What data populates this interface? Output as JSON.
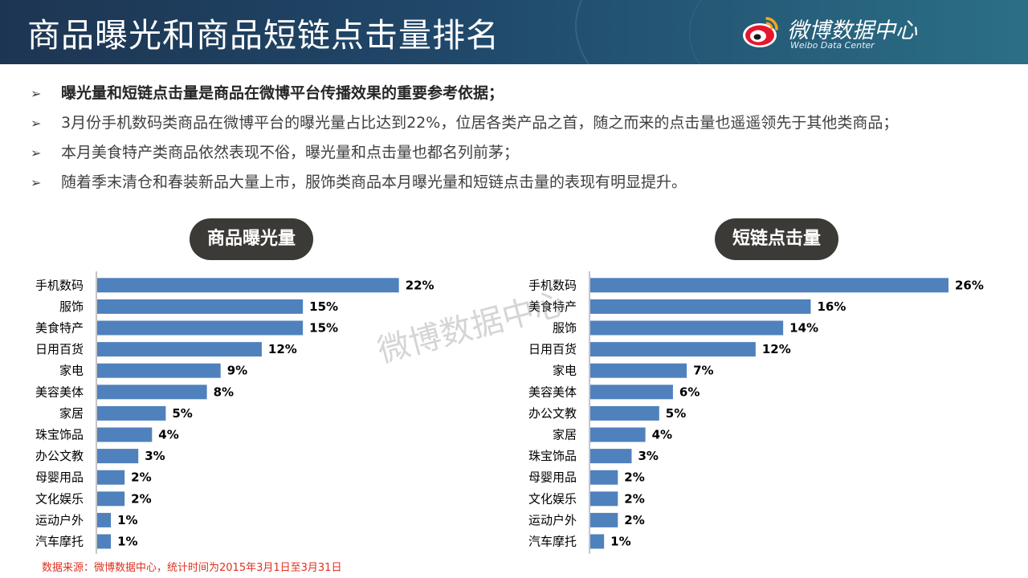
{
  "header": {
    "title": "商品曝光和商品短链点击量排名",
    "logo_text": "微博数据中心",
    "logo_subtext": "Weibo Data Center"
  },
  "bullets": [
    {
      "text": "曝光量和短链点击量是商品在微博平台传播效果的重要参考依据；",
      "bold": true
    },
    {
      "text": "3月份手机数码类商品在微博平台的曝光量占比达到22%，位居各类产品之首，随之而来的点击量也遥遥领先于其他类商品；",
      "bold": false
    },
    {
      "text": "本月美食特产类商品依然表现不俗，曝光量和点击量也都名列前茅；",
      "bold": false
    },
    {
      "text": "随着季末清仓和春装新品大量上市，服饰类商品本月曝光量和短链点击量的表现有明显提升。",
      "bold": false
    }
  ],
  "watermark": "微博数据中心",
  "footer": {
    "source": "数据来源：微博数据中心，统计时间为2015年3月1日至3月31日"
  },
  "colors": {
    "bar": "#4f81bd",
    "pill": "#3c3a36",
    "source": "#e0301e"
  },
  "chart_data": [
    {
      "type": "bar",
      "orientation": "horizontal",
      "title": "商品曝光量",
      "categories": [
        "手机数码",
        "服饰",
        "美食特产",
        "日用百货",
        "家电",
        "美容美体",
        "家居",
        "珠宝饰品",
        "办公文教",
        "母婴用品",
        "文化娱乐",
        "运动户外",
        "汽车摩托"
      ],
      "values": [
        22,
        15,
        15,
        12,
        9,
        8,
        5,
        4,
        3,
        2,
        2,
        1,
        1
      ],
      "value_labels": [
        "22%",
        "15%",
        "15%",
        "12%",
        "9%",
        "8%",
        "5%",
        "4%",
        "3%",
        "2%",
        "2%",
        "1%",
        "1%"
      ],
      "unit": "%",
      "xlim": [
        0,
        26
      ]
    },
    {
      "type": "bar",
      "orientation": "horizontal",
      "title": "短链点击量",
      "categories": [
        "手机数码",
        "美食特产",
        "服饰",
        "日用百货",
        "家电",
        "美容美体",
        "办公文教",
        "家居",
        "珠宝饰品",
        "母婴用品",
        "文化娱乐",
        "运动户外",
        "汽车摩托"
      ],
      "values": [
        26,
        16,
        14,
        12,
        7,
        6,
        5,
        4,
        3,
        2,
        2,
        2,
        1
      ],
      "value_labels": [
        "26%",
        "16%",
        "14%",
        "12%",
        "7%",
        "6%",
        "5%",
        "4%",
        "3%",
        "2%",
        "2%",
        "2%",
        "1%"
      ],
      "unit": "%",
      "xlim": [
        0,
        26
      ]
    }
  ]
}
